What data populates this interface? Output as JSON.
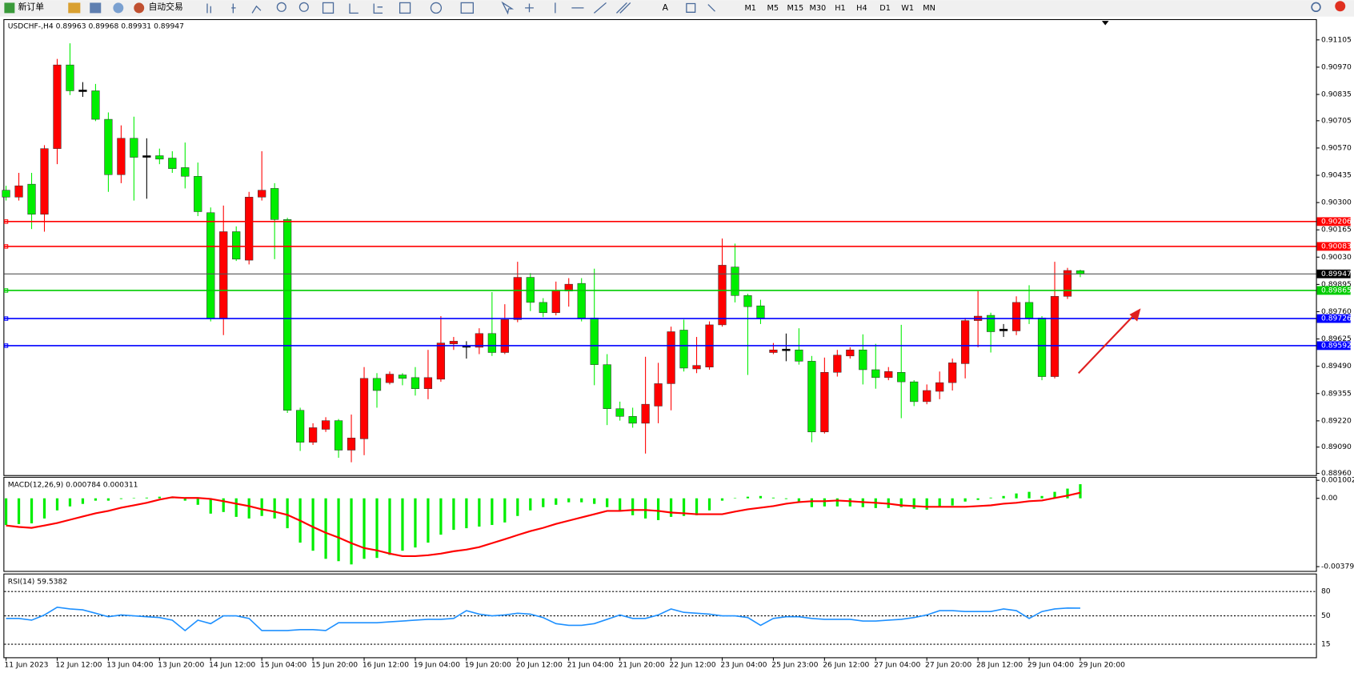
{
  "toolbar": {
    "new_order": "新订单",
    "auto_trade": "自动交易",
    "timeframes": [
      "M1",
      "M5",
      "M15",
      "M30",
      "H1",
      "H4",
      "D1",
      "W1",
      "MN"
    ]
  },
  "chart": {
    "symbol": "USDCHF-,H4",
    "bull_color": "#ff0000",
    "bear_color": "#00ee00",
    "ylim": [
      0.8896,
      0.91105
    ],
    "yticks": [
      0.91105,
      {
        "value": 0.9097,
        "label": "0.90970"
      },
      0.90835,
      0.90705,
      {
        "value": 0.9057,
        "label": "0.90570"
      },
      0.90435,
      {
        "value": 0.903,
        "label": "0.90300"
      },
      0.90165,
      {
        "value": 0.9003,
        "label": "0.90030"
      },
      0.89895,
      {
        "value": 0.8976,
        "label": "0.89760"
      },
      0.89625,
      {
        "value": 0.8949,
        "label": "0.89490"
      },
      0.89355,
      {
        "value": 0.8922,
        "label": "0.89220"
      },
      {
        "value": 0.8909,
        "label": "0.89090"
      },
      {
        "value": 0.8896,
        "label": "0.88960"
      }
    ],
    "levels": [
      {
        "value": 0.90206,
        "color": "#ff0000"
      },
      {
        "value": 0.90083,
        "color": "#ff0000"
      },
      {
        "value": 0.89865,
        "color": "#00cc00"
      },
      {
        "value": 0.89726,
        "color": "#0000ff"
      },
      {
        "value": 0.89592,
        "color": "#0000ff"
      }
    ],
    "xticks": [
      "11 Jun 2023",
      "12 Jun 12:00",
      "13 Jun 04:00",
      "13 Jun 20:00",
      "14 Jun 12:00",
      "15 Jun 04:00",
      "15 Jun 20:00",
      "16 Jun 12:00",
      "19 Jun 04:00",
      "19 Jun 20:00",
      "20 Jun 12:00",
      "21 Jun 04:00",
      "21 Jun 20:00",
      "22 Jun 12:00",
      "23 Jun 04:00",
      "25 Jun 23:00",
      "26 Jun 12:00",
      "27 Jun 04:00",
      "27 Jun 20:00",
      "28 Jun 12:00",
      "29 Jun 04:00",
      "29 Jun 20:00"
    ],
    "candles": [
      [
        0.90361,
        0.90383,
        0.9031,
        0.90327
      ],
      [
        0.90327,
        0.90447,
        0.9031,
        0.90383
      ],
      [
        0.90391,
        0.90447,
        0.90169,
        0.90242
      ],
      [
        0.90242,
        0.90584,
        0.90156,
        0.90567
      ],
      [
        0.90567,
        0.91011,
        0.9049,
        0.90981
      ],
      [
        0.90981,
        0.91088,
        0.90832,
        0.90853
      ],
      [
        0.90857,
        0.90896,
        0.90823,
        0.90849
      ],
      [
        0.90853,
        0.90887,
        0.90703,
        0.90712
      ],
      [
        0.90712,
        0.90746,
        0.90353,
        0.90438
      ],
      [
        0.90438,
        0.90682,
        0.90396,
        0.90618
      ],
      [
        0.90618,
        0.90725,
        0.9031,
        0.90524
      ],
      [
        0.90532,
        0.90618,
        0.90319,
        0.90524
      ],
      [
        0.90532,
        0.90567,
        0.9049,
        0.90515
      ],
      [
        0.9052,
        0.90554,
        0.90447,
        0.90468
      ],
      [
        0.90473,
        0.90597,
        0.9037,
        0.9043
      ],
      [
        0.9043,
        0.90498,
        0.90233,
        0.90255
      ],
      [
        0.9025,
        0.90276,
        0.89712,
        0.89725
      ],
      [
        0.89725,
        0.90285,
        0.89644,
        0.90156
      ],
      [
        0.90156,
        0.90182,
        0.90011,
        0.9002
      ],
      [
        0.90015,
        0.90353,
        0.89994,
        0.90327
      ],
      [
        0.90327,
        0.90554,
        0.9031,
        0.90361
      ],
      [
        0.9037,
        0.90396,
        0.9002,
        0.90216
      ],
      [
        0.90216,
        0.90225,
        0.89259,
        0.89272
      ],
      [
        0.89272,
        0.89285,
        0.89071,
        0.89114
      ],
      [
        0.89114,
        0.89208,
        0.89101,
        0.89186
      ],
      [
        0.89178,
        0.89238,
        0.89165,
        0.89221
      ],
      [
        0.89221,
        0.89229,
        0.89037,
        0.89075
      ],
      [
        0.89075,
        0.89251,
        0.89015,
        0.89135
      ],
      [
        0.89131,
        0.89486,
        0.8905,
        0.8943
      ],
      [
        0.8943,
        0.89456,
        0.89285,
        0.8937
      ],
      [
        0.89409,
        0.89464,
        0.894,
        0.89451
      ],
      [
        0.89447,
        0.89456,
        0.89396,
        0.8943
      ],
      [
        0.89434,
        0.89486,
        0.89345,
        0.89379
      ],
      [
        0.89379,
        0.89571,
        0.89327,
        0.89434
      ],
      [
        0.89426,
        0.89738,
        0.89413,
        0.89605
      ],
      [
        0.89601,
        0.89635,
        0.89571,
        0.89614
      ],
      [
        0.89592,
        0.89614,
        0.89528,
        0.89584
      ],
      [
        0.89584,
        0.89678,
        0.8955,
        0.89652
      ],
      [
        0.89652,
        0.89857,
        0.89541,
        0.89558
      ],
      [
        0.89558,
        0.89797,
        0.8955,
        0.89721
      ],
      [
        0.89721,
        0.90007,
        0.89708,
        0.8993
      ],
      [
        0.8993,
        0.89951,
        0.89763,
        0.89806
      ],
      [
        0.89806,
        0.89827,
        0.89733,
        0.89755
      ],
      [
        0.89755,
        0.89909,
        0.89742,
        0.89866
      ],
      [
        0.89862,
        0.89926,
        0.89785,
        0.89896
      ],
      [
        0.899,
        0.89926,
        0.89712,
        0.89729
      ],
      [
        0.89729,
        0.89973,
        0.89396,
        0.89498
      ],
      [
        0.89498,
        0.8955,
        0.89199,
        0.8928
      ],
      [
        0.8928,
        0.89315,
        0.89221,
        0.89242
      ],
      [
        0.89242,
        0.89285,
        0.89186,
        0.89208
      ],
      [
        0.89208,
        0.89537,
        0.89058,
        0.89302
      ],
      [
        0.89293,
        0.89507,
        0.89208,
        0.89404
      ],
      [
        0.89404,
        0.89686,
        0.89272,
        0.89661
      ],
      [
        0.89669,
        0.89721,
        0.89464,
        0.89481
      ],
      [
        0.89477,
        0.89635,
        0.89456,
        0.89494
      ],
      [
        0.89486,
        0.89712,
        0.89473,
        0.89695
      ],
      [
        0.89695,
        0.90122,
        0.89686,
        0.8999
      ],
      [
        0.89981,
        0.90097,
        0.89806,
        0.8984
      ],
      [
        0.8984,
        0.89849,
        0.89447,
        0.89785
      ],
      [
        0.89789,
        0.89819,
        0.89699,
        0.89729
      ],
      [
        0.89558,
        0.89605,
        0.8955,
        0.89571
      ],
      [
        0.89575,
        0.89652,
        0.89515,
        0.89567
      ],
      [
        0.89571,
        0.89678,
        0.89498,
        0.89515
      ],
      [
        0.89515,
        0.89541,
        0.89114,
        0.89165
      ],
      [
        0.89165,
        0.89533,
        0.89157,
        0.8946
      ],
      [
        0.8946,
        0.89571,
        0.89439,
        0.89545
      ],
      [
        0.89541,
        0.89584,
        0.89528,
        0.89571
      ],
      [
        0.89571,
        0.89648,
        0.894,
        0.89473
      ],
      [
        0.89473,
        0.89601,
        0.89379,
        0.89434
      ],
      [
        0.89434,
        0.89486,
        0.89421,
        0.89464
      ],
      [
        0.8946,
        0.89695,
        0.89233,
        0.89413
      ],
      [
        0.89413,
        0.89421,
        0.89293,
        0.89315
      ],
      [
        0.89315,
        0.894,
        0.89302,
        0.8937
      ],
      [
        0.89366,
        0.89464,
        0.89327,
        0.89409
      ],
      [
        0.89409,
        0.89528,
        0.8937,
        0.89507
      ],
      [
        0.89503,
        0.89729,
        0.8943,
        0.89716
      ],
      [
        0.89716,
        0.89862,
        0.89584,
        0.89738
      ],
      [
        0.89742,
        0.89755,
        0.89558,
        0.89661
      ],
      [
        0.89674,
        0.89699,
        0.89635,
        0.89665
      ],
      [
        0.89665,
        0.89836,
        0.89644,
        0.89806
      ],
      [
        0.89806,
        0.89891,
        0.89699,
        0.89729
      ],
      [
        0.89729,
        0.89738,
        0.89421,
        0.89439
      ],
      [
        0.89439,
        0.90007,
        0.8943,
        0.89836
      ],
      [
        0.89836,
        0.89977,
        0.89823,
        0.89964
      ],
      [
        0.89963,
        0.89968,
        0.89931,
        0.89947
      ]
    ]
  },
  "macd": {
    "name": "MACD(12,26,9)",
    "hist_color": "#00ee00",
    "signal_color": "#ff0000",
    "ylim": [
      -0.003793,
      0.001002
    ],
    "yticks": [
      0.001002,
      {
        "value": 0,
        "label": "0.00"
      },
      -0.003793
    ],
    "histogram": [
      -0.00148,
      -0.00143,
      -0.00139,
      -0.00112,
      -0.00067,
      -0.00045,
      -0.00031,
      -0.00013,
      -0.00013,
      -4e-05,
      2e-05,
      4e-05,
      9e-05,
      4e-05,
      -0.00013,
      -0.00036,
      -0.00085,
      -0.00076,
      -0.00103,
      -0.00112,
      -0.00098,
      -0.00112,
      -0.00166,
      -0.00246,
      -0.00291,
      -0.00336,
      -0.00349,
      -0.00367,
      -0.00336,
      -0.00331,
      -0.00314,
      -0.00291,
      -0.00273,
      -0.00246,
      -0.00202,
      -0.00175,
      -0.00166,
      -0.00157,
      -0.00148,
      -0.00134,
      -0.00098,
      -0.00067,
      -0.00049,
      -0.00036,
      -0.00022,
      -0.00022,
      -0.00031,
      -0.00049,
      -0.00067,
      -0.00094,
      -0.00112,
      -0.00121,
      -0.00103,
      -0.00098,
      -0.00094,
      -0.00067,
      -0.00013,
      2e-05,
      9e-05,
      0.00013,
      4e-05,
      -4e-05,
      -0.00022,
      -0.00049,
      -0.00045,
      -0.00045,
      -0.00045,
      -0.00049,
      -0.00054,
      -0.00054,
      -0.00049,
      -0.00058,
      -0.00063,
      -0.00049,
      -0.0004,
      -0.00018,
      -9e-05,
      4e-05,
      0.00013,
      0.00027,
      0.00036,
      0.00013,
      0.00036,
      0.00054,
      0.000784
    ],
    "signal": [
      -0.00151,
      -0.00159,
      -0.00164,
      -0.00151,
      -0.00137,
      -0.00119,
      -0.00101,
      -0.00083,
      -0.0007,
      -0.00052,
      -0.00039,
      -0.00025,
      -7e-05,
      6e-05,
      2e-05,
      2e-05,
      -3e-05,
      -0.00016,
      -0.0003,
      -0.00043,
      -0.00061,
      -0.00074,
      -0.00092,
      -0.00124,
      -0.00159,
      -0.00191,
      -0.00218,
      -0.00249,
      -0.00276,
      -0.00289,
      -0.00307,
      -0.00321,
      -0.00321,
      -0.00316,
      -0.00307,
      -0.00294,
      -0.00285,
      -0.00271,
      -0.00249,
      -0.00227,
      -0.00204,
      -0.00182,
      -0.00164,
      -0.00142,
      -0.00124,
      -0.00106,
      -0.00088,
      -0.0007,
      -0.0007,
      -0.00065,
      -0.00065,
      -0.0007,
      -0.00079,
      -0.00083,
      -0.00088,
      -0.00088,
      -0.00088,
      -0.00074,
      -0.00061,
      -0.00052,
      -0.00043,
      -0.0003,
      -0.00021,
      -0.00016,
      -0.00016,
      -0.00012,
      -0.00016,
      -0.00021,
      -0.00025,
      -0.0003,
      -0.00039,
      -0.00043,
      -0.00047,
      -0.00047,
      -0.00047,
      -0.00047,
      -0.00043,
      -0.00039,
      -0.0003,
      -0.00025,
      -0.00016,
      -0.00012,
      2e-05,
      0.00015,
      0.000311
    ]
  },
  "rsi": {
    "name": "RSI(14)",
    "color": "#1e90ff",
    "ylim": [
      0,
      100
    ],
    "yticks": [
      80,
      50,
      15
    ],
    "values": [
      46.8,
      46.8,
      44.7,
      51.1,
      60.6,
      58.5,
      57.4,
      53.2,
      48.9,
      51.1,
      50.0,
      48.9,
      47.9,
      44.7,
      31.9,
      44.7,
      40.4,
      50.0,
      50.0,
      46.8,
      31.9,
      31.9,
      31.9,
      33.0,
      33.0,
      31.9,
      41.5,
      41.5,
      41.5,
      41.5,
      42.6,
      43.6,
      44.7,
      45.7,
      45.7,
      46.8,
      56.4,
      52.1,
      50.0,
      51.1,
      53.2,
      52.1,
      47.9,
      40.4,
      38.3,
      38.3,
      40.4,
      45.7,
      51.1,
      46.8,
      46.8,
      51.1,
      58.5,
      54.3,
      53.2,
      52.1,
      50.0,
      50.0,
      47.9,
      38.3,
      46.8,
      48.9,
      48.9,
      46.8,
      45.7,
      45.7,
      45.7,
      43.6,
      43.6,
      44.7,
      45.7,
      47.9,
      51.1,
      56.4,
      56.4,
      55.3,
      55.3,
      55.3,
      58.5,
      56.4,
      46.8,
      55.3,
      58.5,
      59.6,
      59.5382
    ]
  }
}
